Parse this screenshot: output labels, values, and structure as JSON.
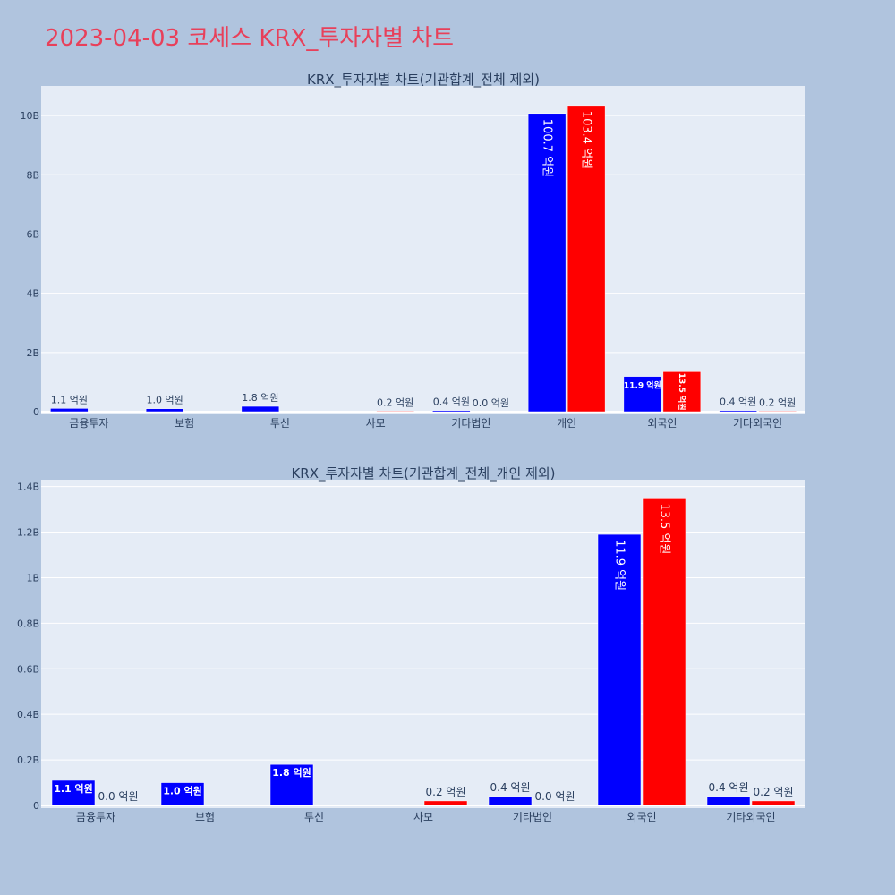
{
  "page": {
    "title": "2023-04-03 코세스 KRX_투자자별 차트"
  },
  "colors": {
    "background": "#b0c4de",
    "plot_bg": "#e5ecf6",
    "grid": "#ffffff",
    "title": "#e8405a",
    "text": "#2a3f5f",
    "series_a": "#0000ff",
    "series_b": "#ff0000"
  },
  "chart_data": [
    {
      "type": "bar",
      "title": "KRX_투자자별 차트(기관합계_전체 제외)",
      "categories": [
        "금융투자",
        "보험",
        "투신",
        "사모",
        "기타법인",
        "개인",
        "외국인",
        "기타외국인"
      ],
      "ylim": [
        0,
        11000000000
      ],
      "yticks": [
        0,
        2000000000,
        4000000000,
        6000000000,
        8000000000,
        10000000000
      ],
      "ytick_labels": [
        "0",
        "2B",
        "4B",
        "6B",
        "8B",
        "10B"
      ],
      "series": [
        {
          "color": "#0000ff",
          "values": [
            110000000,
            100000000,
            180000000,
            0,
            40000000,
            10070000000,
            1190000000,
            40000000
          ],
          "labels": [
            "1.1 억원",
            "1.0 억원",
            "1.8 억원",
            "",
            "0.4 억원",
            "100.7 억원",
            "11.9 억원",
            "0.4 억원"
          ]
        },
        {
          "color": "#ff0000",
          "values": [
            0,
            0,
            0,
            20000000,
            0,
            10340000000,
            1350000000,
            20000000
          ],
          "labels": [
            "",
            "",
            "",
            "0.2 억원",
            "0.0 억원",
            "103.4 억원",
            "13.5 억원",
            "0.2 억원"
          ]
        }
      ],
      "grid": true
    },
    {
      "type": "bar",
      "title": "KRX_투자자별 차트(기관합계_전체_개인 제외)",
      "categories": [
        "금융투자",
        "보험",
        "투신",
        "사모",
        "기타법인",
        "외국인",
        "기타외국인"
      ],
      "ylim": [
        0,
        1430000000
      ],
      "yticks": [
        0,
        200000000,
        400000000,
        600000000,
        800000000,
        1000000000,
        1200000000,
        1400000000
      ],
      "ytick_labels": [
        "0",
        "0.2B",
        "0.4B",
        "0.6B",
        "0.8B",
        "1B",
        "1.2B",
        "1.4B"
      ],
      "series": [
        {
          "color": "#0000ff",
          "values": [
            110000000,
            100000000,
            180000000,
            0,
            40000000,
            1190000000,
            40000000
          ],
          "labels": [
            "1.1 억원",
            "1.0 억원",
            "1.8 억원",
            "",
            "0.4 억원",
            "11.9 억원",
            "0.4 억원"
          ]
        },
        {
          "color": "#ff0000",
          "values": [
            0,
            0,
            0,
            20000000,
            0,
            1350000000,
            20000000
          ],
          "labels": [
            "0.0 억원",
            "",
            "",
            "0.2 억원",
            "0.0 억원",
            "13.5 억원",
            "0.2 억원"
          ]
        }
      ],
      "grid": true
    }
  ]
}
